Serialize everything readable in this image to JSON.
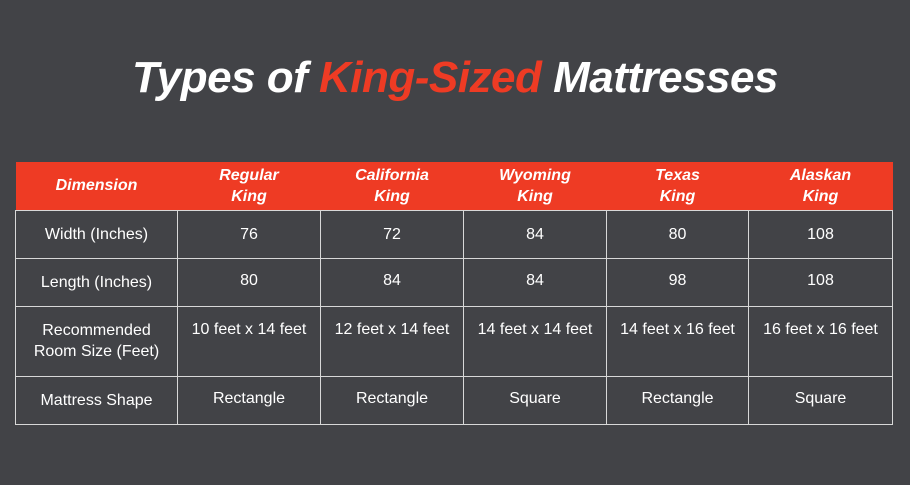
{
  "title": {
    "part1": "Types of ",
    "accent": "King-Sized",
    "part2": " Mattresses",
    "accent_color": "#ee3b24"
  },
  "colors": {
    "background": "#424347",
    "header": "#ee3b24",
    "text": "#ffffff",
    "grid_line": "#d8d8d8"
  },
  "table": {
    "header": {
      "dimension": "Dimension",
      "columns": [
        {
          "line1": "Regular",
          "line2": "King"
        },
        {
          "line1": "California",
          "line2": "King"
        },
        {
          "line1": "Wyoming",
          "line2": "King"
        },
        {
          "line1": "Texas",
          "line2": "King"
        },
        {
          "line1": "Alaskan",
          "line2": "King"
        }
      ]
    },
    "rows": [
      {
        "label_line1": "Width (Inches)",
        "label_line2": "",
        "values": [
          "76",
          "72",
          "84",
          "80",
          "108"
        ]
      },
      {
        "label_line1": "Length (Inches)",
        "label_line2": "",
        "values": [
          "80",
          "84",
          "84",
          "98",
          "108"
        ]
      },
      {
        "label_line1": "Recommended",
        "label_line2": "Room Size (Feet)",
        "values": [
          "10 feet x 14 feet",
          "12 feet x 14 feet",
          "14 feet x 14 feet",
          "14 feet x 16 feet",
          "16 feet x 16 feet"
        ]
      },
      {
        "label_line1": "Mattress Shape",
        "label_line2": "",
        "values": [
          "Rectangle",
          "Rectangle",
          "Square",
          "Rectangle",
          "Square"
        ]
      }
    ]
  }
}
